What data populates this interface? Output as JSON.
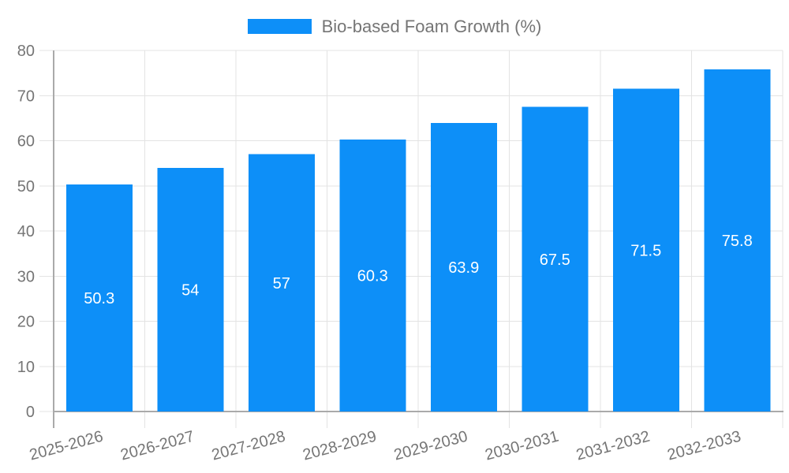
{
  "legend": {
    "label": "Bio-based Foam Growth (%)"
  },
  "colors": {
    "bar": "#0d8ff8",
    "gridline": "#e3e3e3",
    "axis": "#aaaaaa",
    "tick_label": "#757575",
    "value_label": "#ffffff",
    "background": "#ffffff"
  },
  "chart_data": {
    "type": "bar",
    "title": "Bio-based Foam Growth (%)",
    "categories": [
      "2025-2026",
      "2026-2027",
      "2027-2028",
      "2028-2029",
      "2029-2030",
      "2030-2031",
      "2031-2032",
      "2032-2033"
    ],
    "series": [
      {
        "name": "Bio-based Foam Growth (%)",
        "values": [
          50.3,
          54,
          57,
          60.3,
          63.9,
          67.5,
          71.5,
          75.8
        ]
      }
    ],
    "value_labels": [
      "50.3",
      "54",
      "57",
      "60.3",
      "63.9",
      "67.5",
      "71.5",
      "75.8"
    ],
    "xlabel": "",
    "ylabel": "",
    "ylim": [
      0,
      80
    ],
    "yticks": [
      0,
      10,
      20,
      30,
      40,
      50,
      60,
      70,
      80
    ],
    "grid": "both",
    "legend_position": "top-center",
    "value_label_position": "inside-center",
    "xtick_rotation_deg": -15
  }
}
